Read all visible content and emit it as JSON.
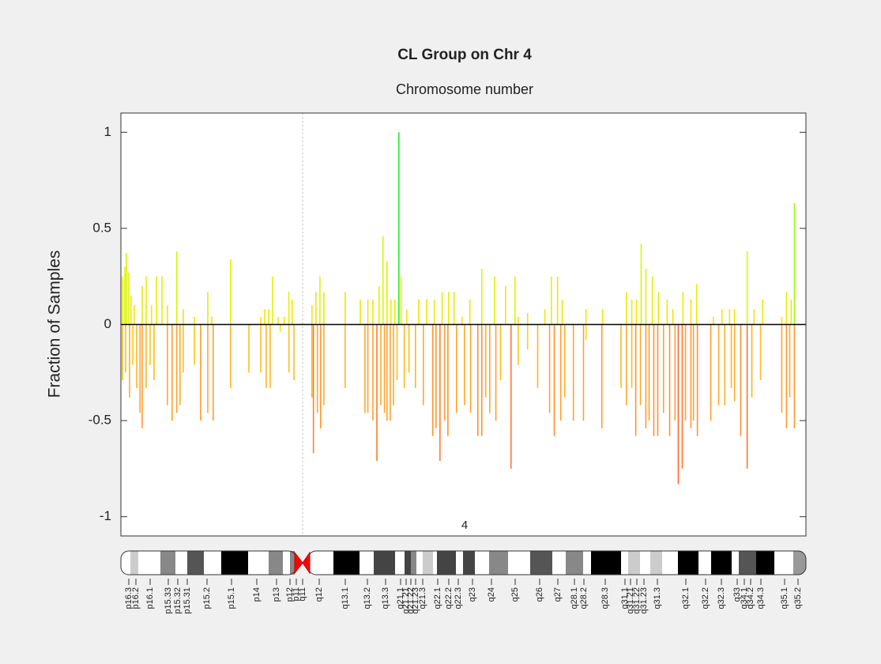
{
  "chart_data": {
    "type": "bar",
    "title": "CL Group on Chr 4",
    "xlabel": "Chromosome number",
    "ylabel": "Fraction of Samples",
    "chromosome_label": "4",
    "xlim": [
      0,
      190
    ],
    "ylim": [
      -1.1,
      1.1
    ],
    "yticks": [
      -1,
      -0.5,
      0,
      0.5,
      1
    ],
    "centromere": 50.4,
    "colormap": [
      "#ff4a2a",
      "#ffa030",
      "#ffe000",
      "#c8ff00",
      "#22ee22"
    ],
    "series": [
      {
        "x": [
          0.4,
          1.1,
          1.5,
          2.2,
          2.8,
          3.7,
          5.9,
          7.0,
          8.5,
          9.9,
          11.4,
          12.9,
          15.5,
          17.3,
          20.4,
          24.1,
          25.2,
          30.4,
          38.8,
          39.9,
          41.0,
          42.1,
          43.6,
          45.3,
          46.6,
          47.5,
          53.0,
          54.1,
          55.2,
          56.3,
          62.2,
          66.4,
          68.5,
          69.9,
          71.6,
          72.7,
          73.8,
          74.9,
          76.0,
          77.1,
          77.7,
          79.3,
          82.6,
          84.8,
          86.9,
          89.1,
          90.9,
          92.4,
          94.6,
          96.8,
          100.1,
          103.6,
          106.7,
          109.3,
          110.2,
          112.8,
          117.6,
          119.4,
          121.1,
          122.4,
          129.0,
          133.6,
          140.2,
          141.7,
          143.0,
          144.3,
          145.6,
          147.4,
          149.1,
          151.5,
          153.1,
          155.9,
          158.1,
          159.7,
          164.3,
          166.7,
          168.8,
          170.2,
          173.7,
          175.6,
          178.0,
          183.3,
          184.6,
          185.9,
          186.8
        ],
        "values": [
          0.25,
          0.3,
          0.37,
          0.27,
          0.15,
          0.1,
          0.2,
          0.25,
          0.1,
          0.25,
          0.25,
          0.1,
          0.38,
          0.08,
          0.04,
          0.17,
          0.04,
          0.34,
          0.04,
          0.08,
          0.08,
          0.25,
          0.04,
          0.04,
          0.17,
          0.13,
          0.1,
          0.17,
          0.25,
          0.17,
          0.17,
          0.13,
          0.13,
          0.13,
          0.2,
          0.46,
          0.33,
          0.13,
          0.13,
          1.0,
          0.25,
          0.08,
          0.13,
          0.13,
          0.13,
          0.17,
          0.17,
          0.17,
          0.04,
          0.13,
          0.29,
          0.25,
          0.2,
          0.25,
          0.04,
          0.06,
          0.08,
          0.25,
          0.25,
          0.13,
          0.08,
          0.08,
          0.17,
          0.13,
          0.13,
          0.42,
          0.29,
          0.25,
          0.17,
          0.13,
          0.08,
          0.17,
          0.13,
          0.21,
          0.04,
          0.08,
          0.08,
          0.08,
          0.38,
          0.08,
          0.13,
          0.04,
          0.17,
          0.13,
          0.63
        ]
      },
      {
        "x": [
          0.4,
          1.3,
          2.4,
          3.3,
          4.4,
          5.3,
          5.9,
          7.0,
          8.1,
          9.2,
          12.9,
          14.2,
          15.5,
          16.4,
          17.3,
          20.4,
          22.1,
          24.1,
          25.6,
          30.4,
          35.5,
          38.8,
          40.3,
          41.4,
          44.2,
          46.6,
          48.0,
          53.0,
          53.4,
          54.5,
          55.4,
          56.3,
          62.2,
          67.7,
          68.5,
          69.9,
          71.0,
          72.1,
          73.1,
          73.8,
          74.7,
          75.6,
          76.6,
          78.6,
          79.9,
          81.7,
          83.9,
          86.5,
          87.4,
          88.5,
          89.8,
          90.7,
          93.1,
          95.3,
          97.0,
          99.0,
          100.1,
          101.2,
          102.3,
          104.0,
          105.3,
          108.2,
          110.2,
          112.8,
          115.6,
          118.9,
          120.2,
          122.0,
          123.1,
          125.5,
          128.3,
          129.0,
          133.4,
          138.7,
          140.2,
          141.7,
          142.8,
          144.1,
          145.6,
          146.5,
          147.8,
          148.9,
          150.5,
          152.2,
          153.7,
          154.6,
          155.7,
          156.6,
          158.1,
          158.8,
          159.9,
          163.6,
          165.8,
          167.5,
          169.3,
          170.2,
          171.9,
          173.7,
          175.0,
          177.4,
          183.3,
          184.6,
          185.5,
          186.8
        ],
        "values": [
          -0.29,
          -0.25,
          -0.38,
          -0.21,
          -0.33,
          -0.46,
          -0.54,
          -0.33,
          -0.21,
          -0.29,
          -0.42,
          -0.5,
          -0.46,
          -0.42,
          -0.25,
          -0.21,
          -0.5,
          -0.46,
          -0.5,
          -0.33,
          -0.25,
          -0.25,
          -0.33,
          -0.33,
          -0.04,
          -0.25,
          -0.29,
          -0.38,
          -0.67,
          -0.46,
          -0.54,
          -0.42,
          -0.33,
          -0.46,
          -0.46,
          -0.5,
          -0.71,
          -0.42,
          -0.46,
          -0.5,
          -0.5,
          -0.42,
          -0.29,
          -0.33,
          -0.25,
          -0.33,
          -0.42,
          -0.58,
          -0.54,
          -0.71,
          -0.5,
          -0.58,
          -0.46,
          -0.42,
          -0.46,
          -0.58,
          -0.58,
          -0.38,
          -0.46,
          -0.5,
          -0.29,
          -0.75,
          -0.21,
          -0.13,
          -0.33,
          -0.46,
          -0.58,
          -0.5,
          -0.38,
          -0.5,
          -0.5,
          -0.08,
          -0.54,
          -0.33,
          -0.42,
          -0.33,
          -0.58,
          -0.42,
          -0.54,
          -0.5,
          -0.58,
          -0.58,
          -0.46,
          -0.58,
          -0.5,
          -0.83,
          -0.75,
          -0.5,
          -0.54,
          -0.5,
          -0.58,
          -0.5,
          -0.42,
          -0.42,
          -0.33,
          -0.4,
          -0.58,
          -0.75,
          -0.38,
          -0.29,
          -0.46,
          -0.54,
          -0.38,
          -0.54
        ]
      }
    ],
    "bands": [
      "p16.3",
      "p16.2",
      "p16.1",
      "p15.33",
      "p15.32",
      "p15.31",
      "p15.2",
      "p15.1",
      "p14",
      "p13",
      "p12",
      "p11",
      "q11",
      "q12",
      "q13.1",
      "q13.2",
      "q13.3",
      "q21.1",
      "q21.21",
      "q21.22",
      "q21.23",
      "q21.3",
      "q22.1",
      "q22.2",
      "q22.3",
      "q23",
      "q24",
      "q25",
      "q26",
      "q27",
      "q28.1",
      "q28.2",
      "q28.3",
      "q31.1",
      "q31.21",
      "q31.22",
      "q31.23",
      "q31.3",
      "q32.1",
      "q32.2",
      "q32.3",
      "q33",
      "q34.1",
      "q34.2",
      "q34.3",
      "q35.1",
      "q35.2"
    ]
  }
}
